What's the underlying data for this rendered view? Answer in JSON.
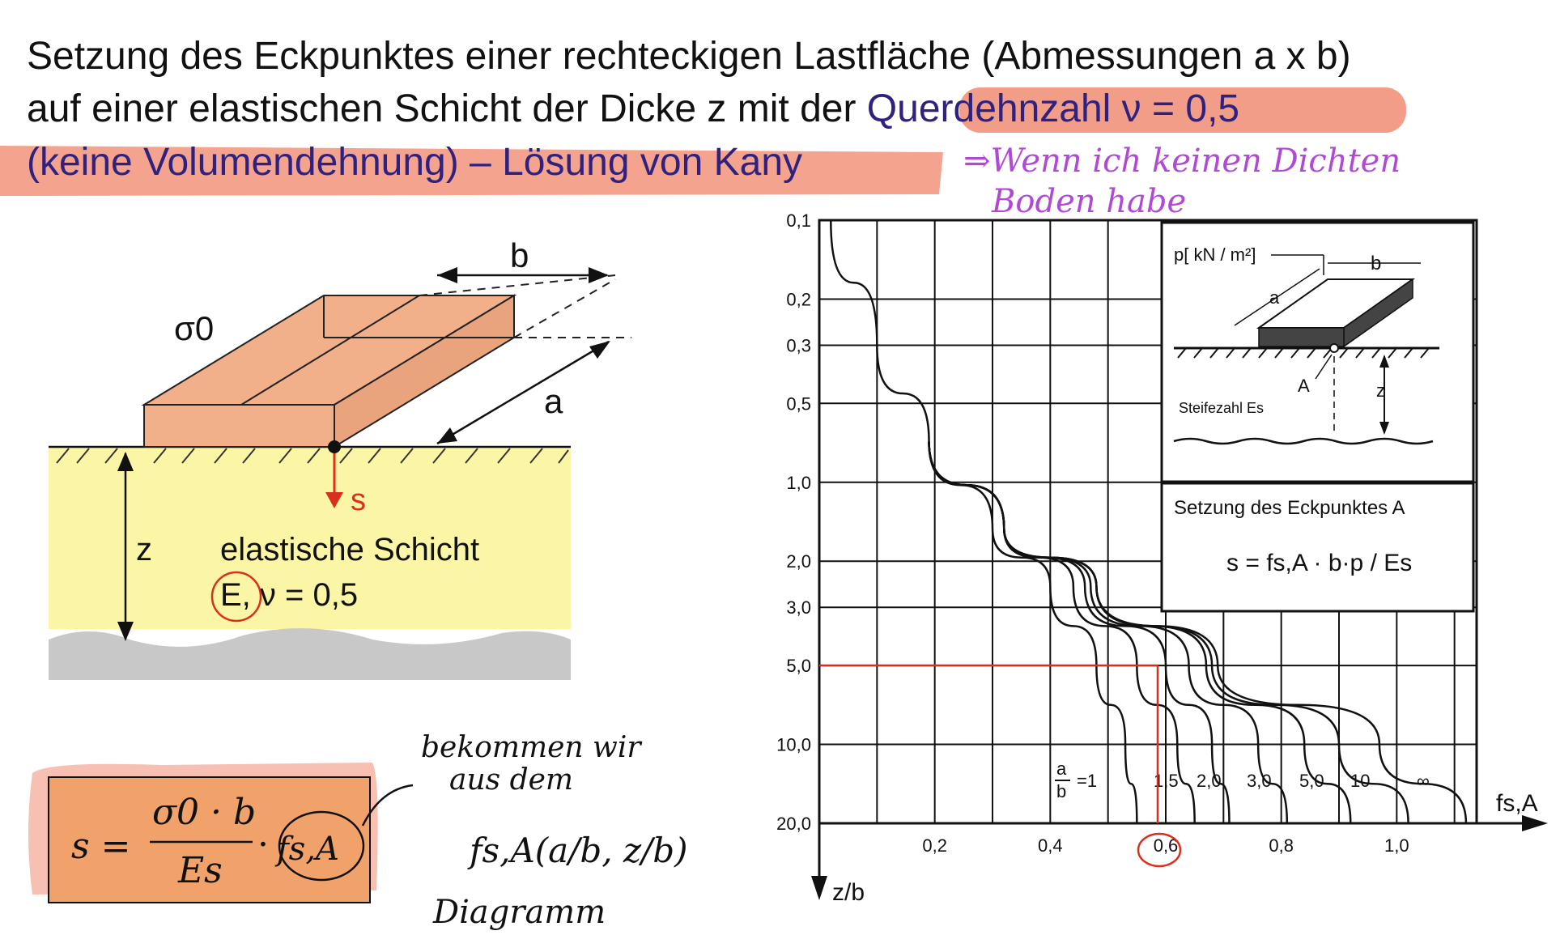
{
  "title": {
    "line1": "Setzung des Eckpunktes einer rechteckigen Lastfläche (Abmessungen a x b)",
    "line2a": "auf einer elastischen Schicht der Dicke z mit der ",
    "line2b": "Querdehnzahl ν = 0,5",
    "line3a": "(keine Volumendehnung) – ",
    "line3b": "Lösung von Kany"
  },
  "handwritten": {
    "top_line1": "⇒Wenn ich keinen Dichten",
    "top_line2": "Boden habe",
    "note_line1": "bekommen wir",
    "note_line2": "aus dem",
    "note_line3": "Diagramm"
  },
  "left_figure": {
    "sigma_label": "σ0",
    "b_label": "b",
    "a_label": "a",
    "s_label": "s",
    "z_label": "z",
    "layer_label": "elastische Schicht",
    "param_label": "E, ν = 0,5"
  },
  "formula": {
    "lhs": "s =",
    "numerator": "σ0 · b",
    "denominator": "Es",
    "dot": "·",
    "factor": "fs,A"
  },
  "function_text": "fs,A(a/b, z/b)",
  "chart": {
    "inset_p_label": "p[ kN / m²]",
    "inset_b_label": "b",
    "inset_a_label": "a",
    "inset_A_label": "A",
    "inset_z_label": "z",
    "inset_stiffness": "Steifezahl Es",
    "formula_title": "Setzung des Eckpunktes A",
    "formula_text": "s = fs,A · b·p / Es",
    "x_axis_label": "fs,A",
    "y_axis_label": "z/b"
  },
  "chart_data": {
    "type": "line",
    "xlabel": "fs,A",
    "ylabel": "z/b",
    "xticks": [
      "0,2",
      "0,4",
      "0,6",
      "0,8",
      "1,0"
    ],
    "yticks": [
      "0,1",
      "0,2",
      "0,3",
      "0,5",
      "1,0",
      "2,0",
      "3,0",
      "5,0",
      "10,0",
      "20,0"
    ],
    "ytick_values": [
      0.1,
      0.2,
      0.3,
      0.5,
      1.0,
      2.0,
      3.0,
      5.0,
      10.0,
      20.0
    ],
    "series": [
      {
        "name": "a/b=1",
        "label": "=1",
        "points": [
          [
            0.02,
            0.1
          ],
          [
            0.1,
            0.3
          ],
          [
            0.19,
            0.7
          ],
          [
            0.3,
            1.5
          ],
          [
            0.4,
            2.5
          ],
          [
            0.48,
            5
          ],
          [
            0.53,
            10
          ],
          [
            0.55,
            20
          ]
        ]
      },
      {
        "name": "1,5",
        "label": "1,5",
        "points": [
          [
            0.19,
            0.7
          ],
          [
            0.32,
            1.5
          ],
          [
            0.44,
            2.5
          ],
          [
            0.55,
            5
          ],
          [
            0.62,
            10
          ],
          [
            0.65,
            20
          ]
        ]
      },
      {
        "name": "2,0",
        "label": "2,0",
        "points": [
          [
            0.19,
            0.7
          ],
          [
            0.32,
            1.5
          ],
          [
            0.46,
            2.5
          ],
          [
            0.6,
            5
          ],
          [
            0.68,
            10
          ],
          [
            0.71,
            20
          ]
        ]
      },
      {
        "name": "3,0",
        "label": "3,0",
        "points": [
          [
            0.19,
            0.7
          ],
          [
            0.32,
            1.5
          ],
          [
            0.47,
            2.5
          ],
          [
            0.64,
            5
          ],
          [
            0.76,
            10
          ],
          [
            0.81,
            20
          ]
        ]
      },
      {
        "name": "5,0",
        "label": "5,0",
        "points": [
          [
            0.19,
            0.7
          ],
          [
            0.32,
            1.5
          ],
          [
            0.48,
            2.5
          ],
          [
            0.67,
            5
          ],
          [
            0.84,
            10
          ],
          [
            0.92,
            20
          ]
        ]
      },
      {
        "name": "10",
        "label": "10",
        "points": [
          [
            0.19,
            0.7
          ],
          [
            0.32,
            1.5
          ],
          [
            0.48,
            2.5
          ],
          [
            0.68,
            5
          ],
          [
            0.9,
            10
          ],
          [
            1.02,
            20
          ]
        ]
      },
      {
        "name": "∞",
        "label": "∞",
        "points": [
          [
            0.19,
            0.7
          ],
          [
            0.32,
            1.5
          ],
          [
            0.48,
            2.5
          ],
          [
            0.69,
            5
          ],
          [
            0.97,
            10
          ],
          [
            1.12,
            20
          ]
        ]
      }
    ],
    "annotations": [
      {
        "type": "reading",
        "z_over_b": 5.0,
        "fs_A": 0.6
      }
    ]
  },
  "colors": {
    "highlight": "#f08c72",
    "block": "#f2b08a",
    "layer": "#fbf6a5",
    "rock": "#c8c8c8",
    "title_accent": "#2e2180",
    "red": "#d8301e",
    "purple": "#b04ad6",
    "formula_box": "#f0a26a"
  }
}
